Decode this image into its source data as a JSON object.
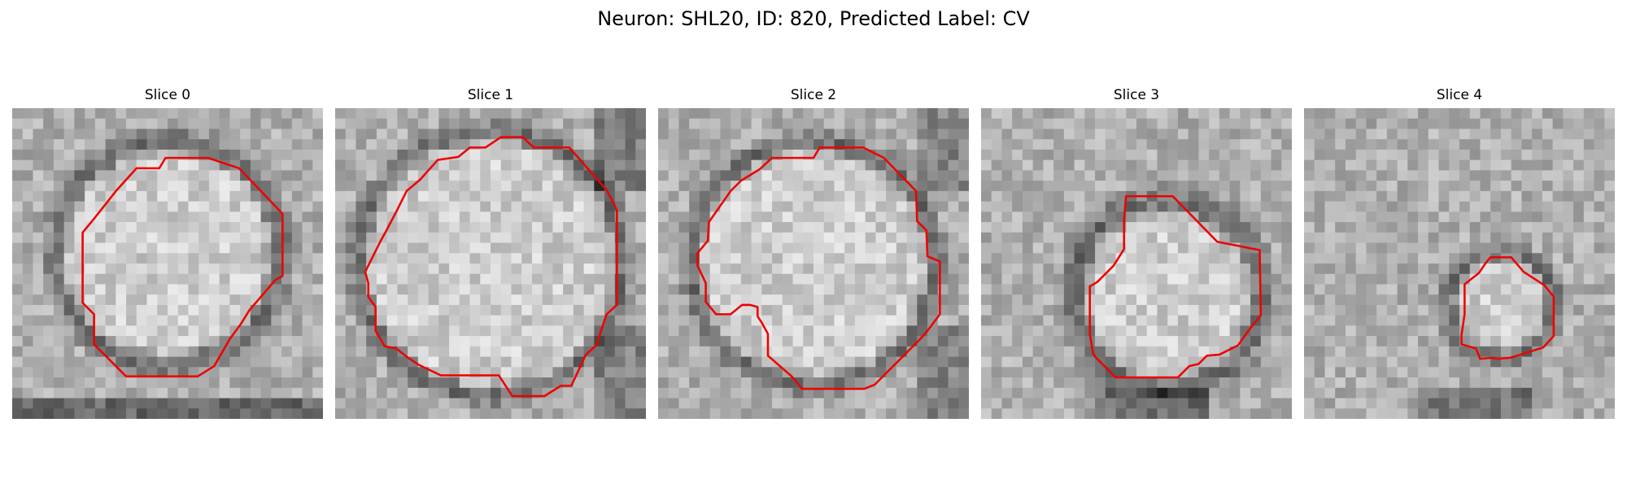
{
  "figure": {
    "title": "Neuron: SHL20, ID: 820, Predicted Label: CV",
    "contour_color": "#ee0000",
    "colormap": "gray",
    "panels": [
      {
        "label": "Slice 0",
        "seed": 11,
        "dark_corner": "left"
      },
      {
        "label": "Slice 1",
        "seed": 23,
        "dark_corner": "right"
      },
      {
        "label": "Slice 2",
        "seed": 37,
        "dark_corner": "right"
      },
      {
        "label": "Slice 3",
        "seed": 41,
        "dark_corner": "bottom"
      },
      {
        "label": "Slice 4",
        "seed": 53,
        "dark_corner": "bottom"
      }
    ]
  }
}
